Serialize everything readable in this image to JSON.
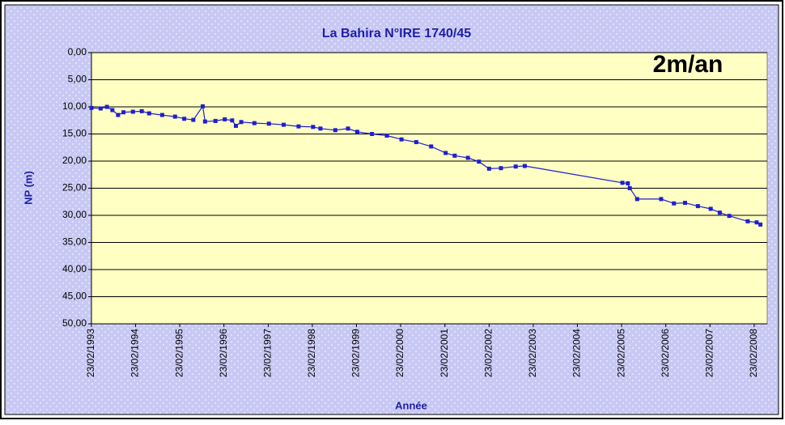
{
  "chart_data": {
    "type": "line",
    "title": "La Bahira N°IRE 1740/45",
    "annotation": "2m/an",
    "x_label": "Année",
    "y_label": "NP (m)",
    "y_reversed": true,
    "grid": true,
    "xlim": [
      "1993-02-23",
      "2008-06-10"
    ],
    "xticks": [
      {
        "value": "1993-02-23",
        "label": "23/02/1993"
      },
      {
        "value": "1994-02-23",
        "label": "23/02/1994"
      },
      {
        "value": "1995-02-23",
        "label": "23/02/1995"
      },
      {
        "value": "1996-02-23",
        "label": "23/02/1996"
      },
      {
        "value": "1997-02-23",
        "label": "23/02/1997"
      },
      {
        "value": "1998-02-23",
        "label": "23/02/1998"
      },
      {
        "value": "1999-02-23",
        "label": "23/02/1999"
      },
      {
        "value": "2000-02-23",
        "label": "23/02/2000"
      },
      {
        "value": "2001-02-23",
        "label": "23/02/2001"
      },
      {
        "value": "2002-02-23",
        "label": "23/02/2002"
      },
      {
        "value": "2003-02-23",
        "label": "23/02/2003"
      },
      {
        "value": "2004-02-23",
        "label": "23/02/2004"
      },
      {
        "value": "2005-02-23",
        "label": "23/02/2005"
      },
      {
        "value": "2006-02-23",
        "label": "23/02/2006"
      },
      {
        "value": "2007-02-23",
        "label": "23/02/2007"
      },
      {
        "value": "2008-02-23",
        "label": "23/02/2008"
      }
    ],
    "ylim": [
      0,
      50
    ],
    "yticks": [
      {
        "value": 0,
        "label": "0,00"
      },
      {
        "value": 5,
        "label": "5,00"
      },
      {
        "value": 10,
        "label": "10,00"
      },
      {
        "value": 15,
        "label": "15,00"
      },
      {
        "value": 20,
        "label": "20,00"
      },
      {
        "value": 25,
        "label": "25,00"
      },
      {
        "value": 30,
        "label": "30,00"
      },
      {
        "value": 35,
        "label": "35,00"
      },
      {
        "value": 40,
        "label": "40,00"
      },
      {
        "value": 45,
        "label": "45,00"
      },
      {
        "value": 50,
        "label": "50,00"
      }
    ],
    "x": [
      "1993-02-23",
      "1993-05-10",
      "1993-07-01",
      "1993-08-15",
      "1993-10-01",
      "1993-11-15",
      "1994-02-01",
      "1994-04-15",
      "1994-06-15",
      "1994-10-01",
      "1995-01-15",
      "1995-04-01",
      "1995-06-15",
      "1995-09-01",
      "1995-09-20",
      "1995-12-15",
      "1996-03-01",
      "1996-05-01",
      "1996-06-01",
      "1996-07-15",
      "1996-11-01",
      "1997-03-01",
      "1997-07-01",
      "1997-11-01",
      "1998-03-01",
      "1998-05-01",
      "1998-09-01",
      "1998-12-15",
      "1999-03-01",
      "1999-07-01",
      "1999-11-01",
      "2000-03-01",
      "2000-07-01",
      "2000-11-01",
      "2001-03-01",
      "2001-05-15",
      "2001-09-01",
      "2001-12-01",
      "2002-02-23",
      "2002-06-01",
      "2002-10-01",
      "2002-12-15",
      "2005-03-01",
      "2005-04-15",
      "2005-05-01",
      "2005-07-01",
      "2006-01-15",
      "2006-05-01",
      "2006-08-01",
      "2006-11-15",
      "2007-03-01",
      "2007-05-15",
      "2007-08-01",
      "2008-01-01",
      "2008-03-15",
      "2008-04-15"
    ],
    "series": [
      {
        "name": "NP",
        "color": "#1f1fd0",
        "values": [
          10.2,
          10.3,
          10.0,
          10.6,
          11.5,
          11.0,
          10.9,
          10.8,
          11.2,
          11.5,
          11.8,
          12.2,
          12.4,
          9.9,
          12.7,
          12.6,
          12.3,
          12.5,
          13.5,
          12.8,
          13.0,
          13.1,
          13.3,
          13.6,
          13.7,
          14.0,
          14.3,
          14.0,
          14.6,
          15.0,
          15.3,
          16.0,
          16.5,
          17.3,
          18.5,
          19.0,
          19.4,
          20.1,
          21.4,
          21.3,
          21.0,
          20.9,
          24.0,
          24.1,
          25.0,
          27.0,
          27.0,
          27.8,
          27.7,
          28.3,
          28.8,
          29.5,
          30.1,
          31.1,
          31.3,
          31.7
        ]
      }
    ]
  }
}
